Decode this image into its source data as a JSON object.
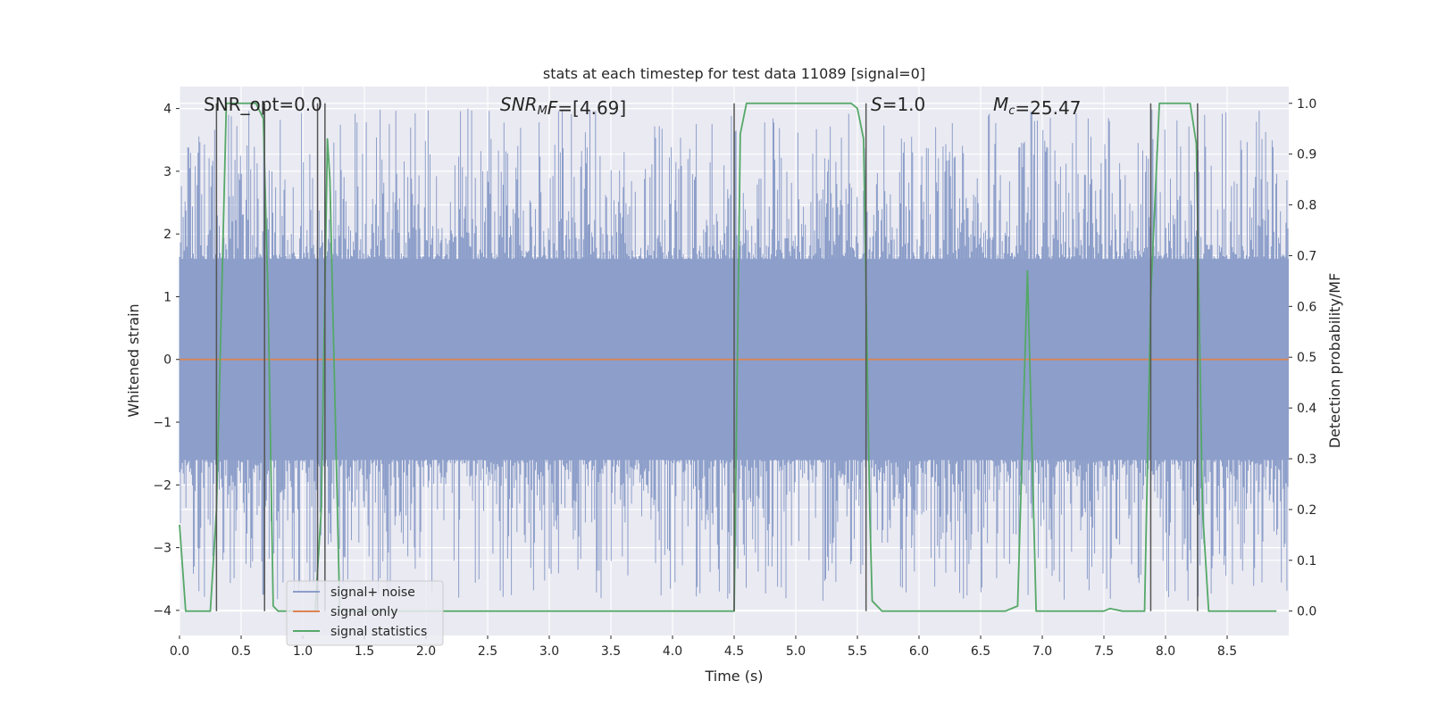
{
  "chart_data": {
    "type": "line",
    "title": "stats at each timestep for test data 11089 [signal=0]",
    "xlabel": "Time (s)",
    "ylabel": "Whitened strain",
    "y2label": "Detection probability/MF",
    "xlim": [
      0,
      9.0
    ],
    "ylim": [
      -4.4,
      4.35
    ],
    "y2lim": [
      -0.048,
      1.033
    ],
    "xticks": [
      0.0,
      0.5,
      1.0,
      1.5,
      2.0,
      2.5,
      3.0,
      3.5,
      4.0,
      4.5,
      5.0,
      5.5,
      6.0,
      6.5,
      7.0,
      7.5,
      8.0,
      8.5
    ],
    "xtick_labels": [
      "0.0",
      "0.5",
      "1.0",
      "1.5",
      "2.0",
      "2.5",
      "3.0",
      "3.5",
      "4.0",
      "4.5",
      "5.0",
      "5.5",
      "6.0",
      "6.5",
      "7.0",
      "7.5",
      "8.0",
      "8.5"
    ],
    "yticks": [
      4,
      3,
      2,
      1,
      0,
      -1,
      -2,
      -3,
      -4
    ],
    "ytick_labels": [
      "4",
      "3",
      "2",
      "1",
      "0",
      "−1",
      "−2",
      "−3",
      "−4"
    ],
    "y2ticks": [
      1.0,
      0.9,
      0.8,
      0.7,
      0.6,
      0.5,
      0.4,
      0.3,
      0.2,
      0.1,
      0.0
    ],
    "y2tick_labels": [
      "1.0",
      "0.9",
      "0.8",
      "0.7",
      "0.6",
      "0.5",
      "0.4",
      "0.3",
      "0.2",
      "0.1",
      "0.0"
    ],
    "grid": true,
    "legend_position": "lower-left",
    "annotations": [
      {
        "text": "SNR_opt=0.0"
      },
      {
        "segments": [
          {
            "text": "SNR",
            "italic": true
          },
          {
            "text": "M",
            "italic": true,
            "sub": true
          },
          {
            "text": "F",
            "italic": true
          },
          {
            "text": "=[4.69]",
            "italic": false
          }
        ]
      },
      {
        "segments": [
          {
            "text": "S",
            "italic": true
          },
          {
            "text": "=1.0",
            "italic": false
          }
        ]
      },
      {
        "segments": [
          {
            "text": "M",
            "italic": true
          },
          {
            "text": "c",
            "italic": true,
            "sub": true
          },
          {
            "text": "=25.47",
            "italic": false
          }
        ]
      }
    ],
    "series": [
      {
        "name": "signal+ noise",
        "color": "#8c9ec9",
        "axis": "left",
        "type": "noise_band",
        "description_values": {
          "typical_envelope": [
            -1.6,
            1.6
          ],
          "peak_max": 4.0,
          "peak_min": -3.85
        }
      },
      {
        "name": "signal only",
        "color": "#dd8452",
        "axis": "left",
        "x": [
          0.0,
          9.0
        ],
        "y": [
          0.0,
          0.0
        ]
      },
      {
        "name": "signal statistics",
        "color": "#55a868",
        "axis": "right",
        "x": [
          0.0,
          0.05,
          0.25,
          0.3,
          0.38,
          0.5,
          0.62,
          0.68,
          0.72,
          0.76,
          0.8,
          1.1,
          1.15,
          1.2,
          1.22,
          1.3,
          4.5,
          4.55,
          4.6,
          4.65,
          5.45,
          5.5,
          5.55,
          5.6,
          5.62,
          5.7,
          6.7,
          6.8,
          6.88,
          6.95,
          7.5,
          7.55,
          7.65,
          7.8,
          7.83,
          7.88,
          7.95,
          8.0,
          8.2,
          8.25,
          8.3,
          8.35,
          8.4,
          8.45,
          8.9
        ],
        "y": [
          0.17,
          0.0,
          0.0,
          0.2,
          1.0,
          1.0,
          1.0,
          0.97,
          0.6,
          0.01,
          0.0,
          0.0,
          0.2,
          0.93,
          0.85,
          0.0,
          0.0,
          0.94,
          1.0,
          1.0,
          1.0,
          0.99,
          0.93,
          0.2,
          0.02,
          0.0,
          0.0,
          0.01,
          0.67,
          0.0,
          0.0,
          0.005,
          0.0,
          0.0,
          0.0,
          0.62,
          1.0,
          1.0,
          1.0,
          0.92,
          0.2,
          0.0,
          0.0,
          0.0,
          0.0
        ]
      }
    ],
    "vertical_markers_x": [
      0.3,
      0.69,
      1.12,
      1.18,
      4.5,
      5.57,
      7.88,
      8.26
    ]
  },
  "legend": {
    "items": [
      {
        "label": "signal+ noise",
        "color": "#8c9ec9"
      },
      {
        "label": "signal only",
        "color": "#dd8452"
      },
      {
        "label": "signal statistics",
        "color": "#55a868"
      }
    ]
  }
}
